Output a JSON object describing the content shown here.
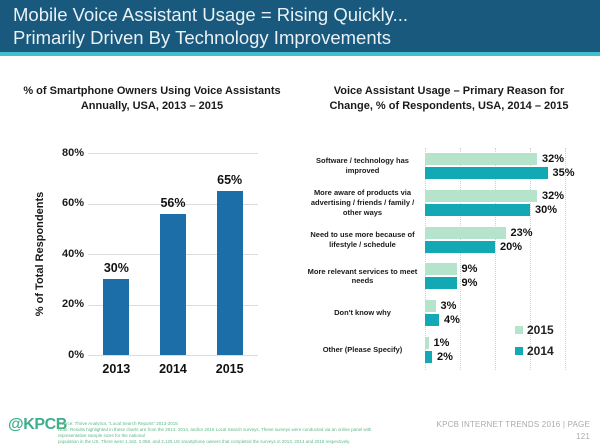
{
  "colors": {
    "header_bg": "#19597D",
    "accent_stripe": "#43BFCD",
    "left_bar_blue": "#1B6EA7",
    "series_2015_mint": "#B5E3CC",
    "series_2014_teal": "#12A9B4",
    "kpcb_green": "#3FAE8C"
  },
  "header": {
    "title_line1": "Mobile Voice Assistant Usage = Rising Quickly...",
    "title_line2": "Primarily Driven By Technology Improvements"
  },
  "left_chart": {
    "title_line1": "% of Smartphone Owners Using Voice Assistants",
    "title_line2": "Annually, USA, 2013 – 2015"
  },
  "right_chart": {
    "title_line1": "Voice Assistant Usage – Primary Reason for",
    "title_line2": "Change, % of Respondents, USA, 2014 – 2015"
  },
  "chart_data": [
    {
      "type": "bar",
      "title": "% of Smartphone Owners Using Voice Assistants Annually, USA, 2013 – 2015",
      "categories": [
        "2013",
        "2014",
        "2015"
      ],
      "values": [
        30,
        56,
        65
      ],
      "xlabel": "",
      "ylabel": "% of Total Respondents",
      "ylim": [
        0,
        80
      ],
      "yticks": [
        0,
        20,
        40,
        60,
        80
      ],
      "grid": true,
      "bar_color": "#1B6EA7",
      "value_label_suffix": "%"
    },
    {
      "type": "bar",
      "orientation": "horizontal",
      "title": "Voice Assistant Usage – Primary Reason for Change, % of Respondents, USA, 2014 – 2015",
      "categories": [
        "Software / technology has improved",
        "More aware of products via advertising / friends / family / other ways",
        "Need to use more because of lifestyle / schedule",
        "More relevant services to meet needs",
        "Don't know why",
        "Other (Please Specify)"
      ],
      "series": [
        {
          "name": "2015",
          "color": "#B5E3CC",
          "values": [
            32,
            32,
            23,
            9,
            3,
            1
          ]
        },
        {
          "name": "2014",
          "color": "#12A9B4",
          "values": [
            35,
            30,
            20,
            9,
            4,
            2
          ]
        }
      ],
      "xlim": [
        0,
        40
      ],
      "xticks": [
        0,
        10,
        20,
        30,
        40
      ],
      "grid": true,
      "legend_position": "bottom-right",
      "value_label_suffix": "%"
    }
  ],
  "footer": {
    "logo": "@KPCB",
    "source_line1": "Source: Thrive Analytics, “Local Search Reports” 2013-2015",
    "source_line2": "Note: Results highlighted in these charts are from the 2013, 2014, and/or 2015 Local Search surveys. These surveys were conducted via an online panel with representative sample sizes for the national",
    "source_line3": "population in the US. There were 1,162, 2,058, and 2,125 US smartphone owners that completed the surveys in 2013, 2014 and 2015 respectively.",
    "report_label": "KPCB INTERNET TRENDS 2016",
    "separator": "|",
    "page_label": "PAGE",
    "page_number": "121"
  }
}
